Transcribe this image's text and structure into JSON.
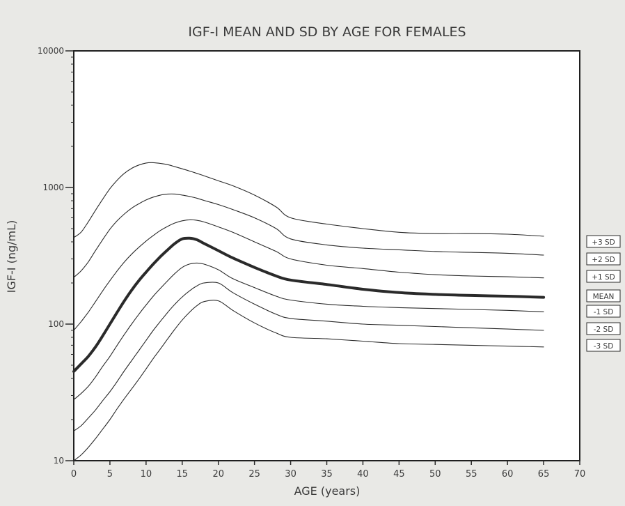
{
  "chart_data": {
    "type": "line",
    "title": "IGF-I MEAN AND SD BY AGE FOR FEMALES",
    "xlabel": "AGE (years)",
    "ylabel": "IGF-I (ng/mL)",
    "xlim": [
      0,
      70
    ],
    "ylim": [
      10,
      10000
    ],
    "yscale": "log",
    "grid": false,
    "x_ticks": [
      "0",
      "5",
      "10",
      "15",
      "20",
      "25",
      "30",
      "35",
      "40",
      "45",
      "50",
      "55",
      "60",
      "65",
      "70"
    ],
    "y_ticks": [
      "10",
      "100",
      "1000",
      "10000"
    ],
    "x": [
      0,
      1,
      2,
      3,
      4,
      5,
      6,
      7,
      8,
      9,
      10,
      11,
      12,
      13,
      14,
      15,
      16,
      17,
      18,
      20,
      22,
      25,
      28,
      30,
      35,
      40,
      45,
      50,
      55,
      60,
      65
    ],
    "series": [
      {
        "name": "+3 SD",
        "values": [
          430,
          470,
          560,
          680,
          820,
          980,
          1130,
          1270,
          1380,
          1460,
          1510,
          1520,
          1500,
          1470,
          1420,
          1370,
          1320,
          1270,
          1220,
          1120,
          1030,
          880,
          720,
          600,
          540,
          500,
          470,
          460,
          460,
          455,
          440
        ]
      },
      {
        "name": "+2 SD",
        "values": [
          220,
          245,
          285,
          345,
          415,
          495,
          570,
          640,
          705,
          760,
          810,
          850,
          880,
          895,
          895,
          880,
          860,
          835,
          805,
          750,
          690,
          600,
          500,
          420,
          380,
          360,
          350,
          340,
          335,
          330,
          320
        ]
      },
      {
        "name": "+1 SD",
        "values": [
          90,
          104,
          122,
          146,
          175,
          208,
          245,
          285,
          325,
          365,
          405,
          445,
          485,
          520,
          550,
          570,
          580,
          575,
          560,
          515,
          470,
          400,
          340,
          300,
          270,
          255,
          240,
          230,
          225,
          222,
          218
        ]
      },
      {
        "name": "MEAN",
        "values": [
          45,
          51,
          58,
          68,
          82,
          100,
          122,
          148,
          177,
          208,
          240,
          275,
          312,
          350,
          390,
          420,
          425,
          415,
          390,
          345,
          305,
          260,
          225,
          210,
          195,
          180,
          170,
          165,
          162,
          160,
          157
        ]
      },
      {
        "name": "-1 SD",
        "values": [
          28,
          31,
          35,
          41,
          49,
          58,
          70,
          84,
          100,
          118,
          138,
          160,
          183,
          208,
          235,
          260,
          275,
          280,
          275,
          250,
          215,
          185,
          160,
          150,
          140,
          135,
          132,
          130,
          128,
          126,
          123
        ]
      },
      {
        "name": "-2 SD",
        "values": [
          16.5,
          18,
          20.5,
          23.5,
          27.5,
          32,
          38,
          45.5,
          54,
          64,
          76,
          90,
          105,
          122,
          140,
          158,
          175,
          190,
          200,
          200,
          170,
          140,
          118,
          110,
          105,
          100,
          98,
          96,
          94,
          92,
          90
        ]
      },
      {
        "name": "-3 SD",
        "values": [
          10,
          11,
          12.5,
          14.5,
          17,
          20,
          24,
          28.5,
          33.5,
          39.5,
          47,
          56,
          66,
          78,
          92,
          107,
          122,
          136,
          146,
          148,
          126,
          102,
          86,
          80,
          78,
          75,
          72,
          71,
          70,
          69,
          68
        ]
      }
    ],
    "legend": [
      {
        "label": "+3 SD"
      },
      {
        "label": "+2 SD"
      },
      {
        "label": "+1 SD"
      },
      {
        "label": "MEAN"
      },
      {
        "label": "-1 SD"
      },
      {
        "label": "-2 SD"
      },
      {
        "label": "-3 SD"
      }
    ],
    "legend_placement": "right",
    "colors": {
      "background": "#e9e9e6",
      "plot": "#ffffff",
      "line": "#2a2a2a"
    }
  }
}
